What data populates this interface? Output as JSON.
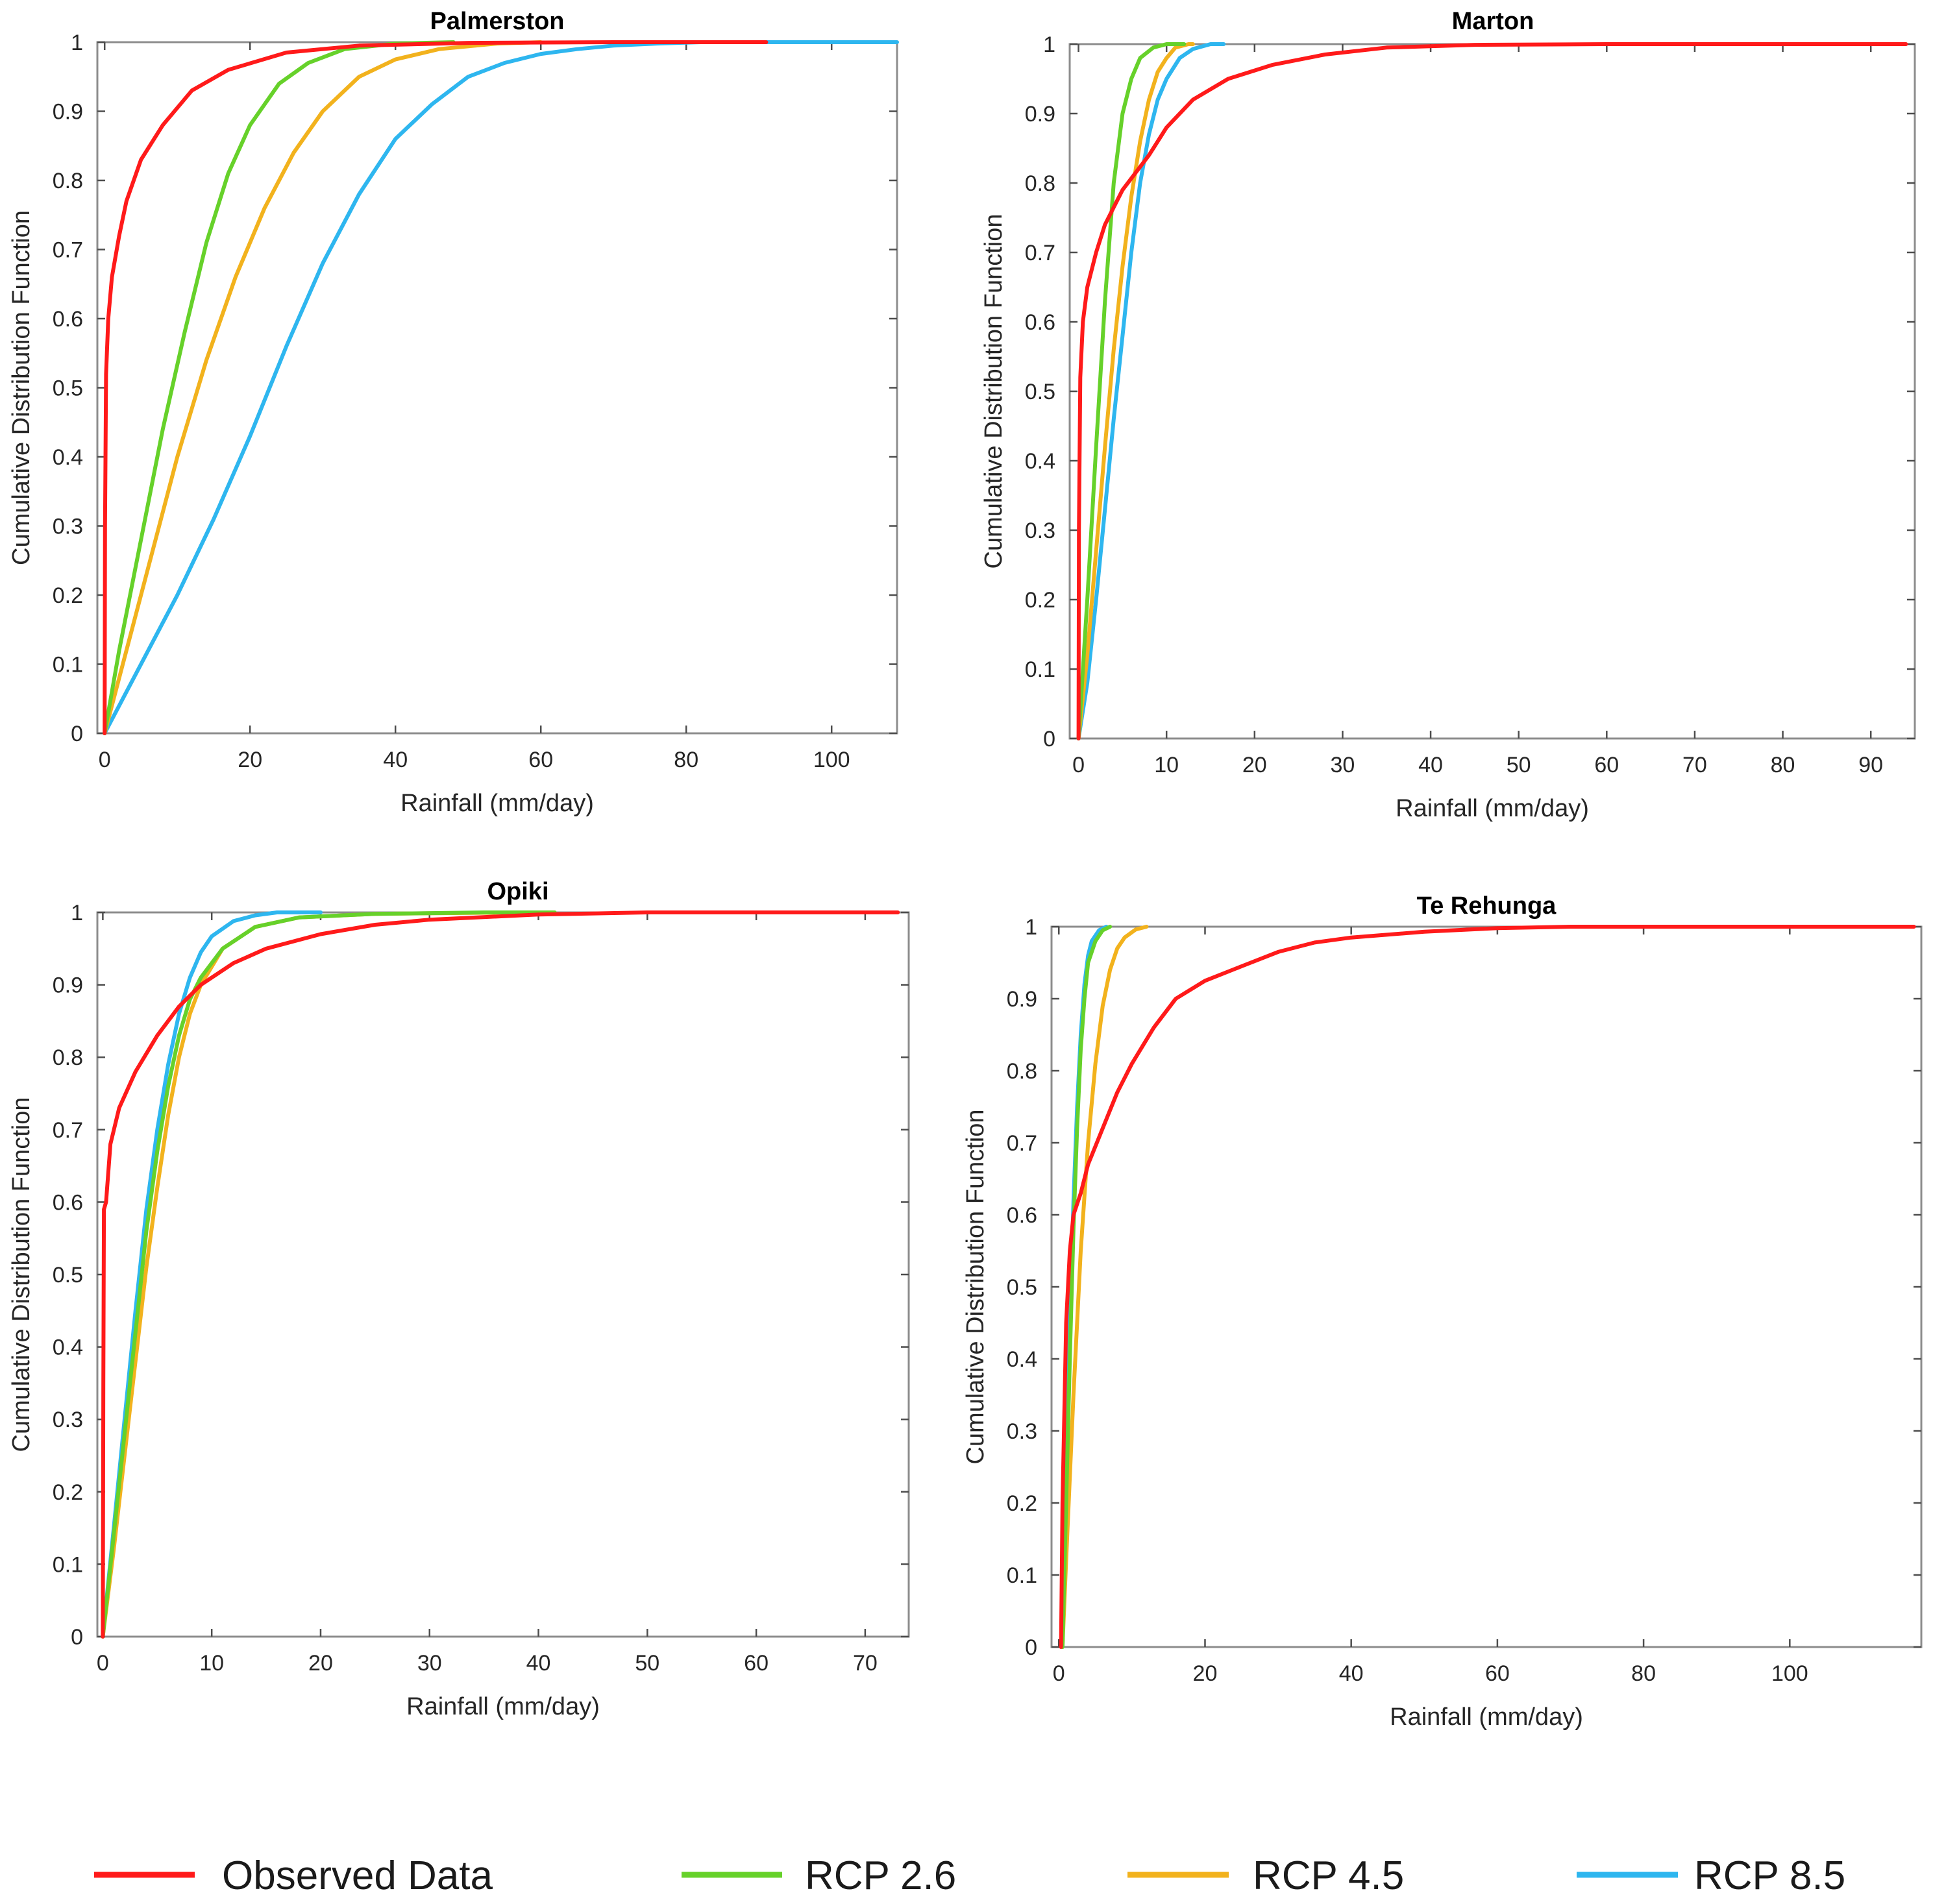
{
  "figure": {
    "legend": [
      {
        "label": "Observed Data",
        "color": "#ff1a1a"
      },
      {
        "label": "RCP 2.6",
        "color": "#66d12a"
      },
      {
        "label": "RCP 4.5",
        "color": "#f2b21d"
      },
      {
        "label": "RCP 8.5",
        "color": "#2eb6ef"
      }
    ]
  },
  "chart_data": [
    {
      "type": "line",
      "title": "Palmerston",
      "xlabel": "Rainfall (mm/day)",
      "ylabel": "Cumulative Distribution Function",
      "xlim": [
        -1,
        109
      ],
      "ylim": [
        0,
        1
      ],
      "xticks": [
        0,
        20,
        40,
        60,
        80,
        100
      ],
      "yticks": [
        0,
        0.1,
        0.2,
        0.3,
        0.4,
        0.5,
        0.6,
        0.7,
        0.8,
        0.9,
        1
      ],
      "series": [
        {
          "name": "Observed Data",
          "color": "#ff1a1a",
          "points": [
            [
              0,
              0
            ],
            [
              0.05,
              0.3
            ],
            [
              0.2,
              0.52
            ],
            [
              0.5,
              0.6
            ],
            [
              1,
              0.66
            ],
            [
              2,
              0.72
            ],
            [
              3,
              0.77
            ],
            [
              5,
              0.83
            ],
            [
              8,
              0.88
            ],
            [
              12,
              0.93
            ],
            [
              17,
              0.96
            ],
            [
              25,
              0.985
            ],
            [
              35,
              0.995
            ],
            [
              50,
              0.999
            ],
            [
              70,
              1
            ],
            [
              91,
              1
            ]
          ]
        },
        {
          "name": "RCP 2.6",
          "color": "#66d12a",
          "points": [
            [
              0,
              0
            ],
            [
              2,
              0.12
            ],
            [
              5,
              0.28
            ],
            [
              8,
              0.44
            ],
            [
              11,
              0.58
            ],
            [
              14,
              0.71
            ],
            [
              17,
              0.81
            ],
            [
              20,
              0.88
            ],
            [
              24,
              0.94
            ],
            [
              28,
              0.97
            ],
            [
              33,
              0.99
            ],
            [
              40,
              0.998
            ],
            [
              48,
              1
            ]
          ]
        },
        {
          "name": "RCP 4.5",
          "color": "#f2b21d",
          "points": [
            [
              0,
              0
            ],
            [
              3,
              0.12
            ],
            [
              6,
              0.24
            ],
            [
              10,
              0.4
            ],
            [
              14,
              0.54
            ],
            [
              18,
              0.66
            ],
            [
              22,
              0.76
            ],
            [
              26,
              0.84
            ],
            [
              30,
              0.9
            ],
            [
              35,
              0.95
            ],
            [
              40,
              0.975
            ],
            [
              46,
              0.99
            ],
            [
              54,
              0.998
            ],
            [
              60,
              1
            ]
          ]
        },
        {
          "name": "RCP 8.5",
          "color": "#2eb6ef",
          "points": [
            [
              0,
              0
            ],
            [
              5,
              0.1
            ],
            [
              10,
              0.2
            ],
            [
              15,
              0.31
            ],
            [
              20,
              0.43
            ],
            [
              25,
              0.56
            ],
            [
              30,
              0.68
            ],
            [
              35,
              0.78
            ],
            [
              40,
              0.86
            ],
            [
              45,
              0.91
            ],
            [
              50,
              0.95
            ],
            [
              55,
              0.97
            ],
            [
              60,
              0.983
            ],
            [
              65,
              0.99
            ],
            [
              70,
              0.995
            ],
            [
              76,
              0.998
            ],
            [
              82,
              1
            ],
            [
              109,
              1
            ]
          ]
        }
      ]
    },
    {
      "type": "line",
      "title": "Marton",
      "xlabel": "Rainfall (mm/day)",
      "ylabel": "Cumulative Distribution Function",
      "xlim": [
        -1,
        95
      ],
      "ylim": [
        0,
        1
      ],
      "xticks": [
        0,
        10,
        20,
        30,
        40,
        50,
        60,
        70,
        80,
        90
      ],
      "yticks": [
        0,
        0.1,
        0.2,
        0.3,
        0.4,
        0.5,
        0.6,
        0.7,
        0.8,
        0.9,
        1
      ],
      "series": [
        {
          "name": "Observed Data",
          "color": "#ff1a1a",
          "points": [
            [
              0,
              0
            ],
            [
              0.05,
              0.3
            ],
            [
              0.2,
              0.52
            ],
            [
              0.5,
              0.6
            ],
            [
              1,
              0.65
            ],
            [
              2,
              0.7
            ],
            [
              3,
              0.74
            ],
            [
              5,
              0.79
            ],
            [
              8,
              0.84
            ],
            [
              10,
              0.88
            ],
            [
              13,
              0.92
            ],
            [
              17,
              0.95
            ],
            [
              22,
              0.97
            ],
            [
              28,
              0.985
            ],
            [
              35,
              0.995
            ],
            [
              45,
              0.999
            ],
            [
              60,
              1
            ],
            [
              94,
              1
            ]
          ]
        },
        {
          "name": "RCP 2.6",
          "color": "#66d12a",
          "points": [
            [
              0,
              0
            ],
            [
              1,
              0.2
            ],
            [
              2,
              0.42
            ],
            [
              3,
              0.63
            ],
            [
              4,
              0.8
            ],
            [
              5,
              0.9
            ],
            [
              6,
              0.95
            ],
            [
              7,
              0.98
            ],
            [
              8.5,
              0.995
            ],
            [
              10,
              1
            ],
            [
              12,
              1
            ]
          ]
        },
        {
          "name": "RCP 4.5",
          "color": "#f2b21d",
          "points": [
            [
              0,
              0
            ],
            [
              1,
              0.12
            ],
            [
              2,
              0.27
            ],
            [
              3,
              0.42
            ],
            [
              4,
              0.56
            ],
            [
              5,
              0.68
            ],
            [
              6,
              0.78
            ],
            [
              7,
              0.86
            ],
            [
              8,
              0.92
            ],
            [
              9,
              0.96
            ],
            [
              10,
              0.98
            ],
            [
              11,
              0.995
            ],
            [
              12.5,
              1
            ],
            [
              13,
              1
            ]
          ]
        },
        {
          "name": "RCP 8.5",
          "color": "#2eb6ef",
          "points": [
            [
              0,
              0
            ],
            [
              1,
              0.08
            ],
            [
              2,
              0.2
            ],
            [
              3,
              0.33
            ],
            [
              4,
              0.46
            ],
            [
              5,
              0.58
            ],
            [
              6,
              0.7
            ],
            [
              7,
              0.8
            ],
            [
              8,
              0.87
            ],
            [
              9,
              0.92
            ],
            [
              10,
              0.95
            ],
            [
              11.5,
              0.98
            ],
            [
              13,
              0.993
            ],
            [
              15,
              1
            ],
            [
              16.5,
              1
            ]
          ]
        }
      ]
    },
    {
      "type": "line",
      "title": "Opiki",
      "xlabel": "Rainfall (mm/day)",
      "ylabel": "Cumulative Distribution Function",
      "xlim": [
        -0.5,
        74
      ],
      "ylim": [
        0,
        1
      ],
      "xticks": [
        0,
        10,
        20,
        30,
        40,
        50,
        60,
        70
      ],
      "yticks": [
        0,
        0.1,
        0.2,
        0.3,
        0.4,
        0.5,
        0.6,
        0.7,
        0.8,
        0.9,
        1
      ],
      "series": [
        {
          "name": "Observed Data",
          "color": "#ff1a1a",
          "points": [
            [
              0,
              0
            ],
            [
              0.05,
              0.35
            ],
            [
              0.1,
              0.59
            ],
            [
              0.3,
              0.6
            ],
            [
              0.7,
              0.68
            ],
            [
              1.5,
              0.73
            ],
            [
              3,
              0.78
            ],
            [
              5,
              0.83
            ],
            [
              7,
              0.87
            ],
            [
              9,
              0.9
            ],
            [
              12,
              0.93
            ],
            [
              15,
              0.95
            ],
            [
              20,
              0.97
            ],
            [
              25,
              0.983
            ],
            [
              30,
              0.99
            ],
            [
              40,
              0.997
            ],
            [
              50,
              1
            ],
            [
              73,
              1
            ]
          ]
        },
        {
          "name": "RCP 2.6",
          "color": "#66d12a",
          "points": [
            [
              0,
              0
            ],
            [
              1,
              0.14
            ],
            [
              2,
              0.28
            ],
            [
              3,
              0.42
            ],
            [
              4,
              0.56
            ],
            [
              5,
              0.67
            ],
            [
              6,
              0.76
            ],
            [
              7,
              0.83
            ],
            [
              8,
              0.88
            ],
            [
              9,
              0.91
            ],
            [
              11,
              0.95
            ],
            [
              14,
              0.98
            ],
            [
              18,
              0.993
            ],
            [
              25,
              0.998
            ],
            [
              35,
              1
            ],
            [
              41.5,
              1
            ]
          ]
        },
        {
          "name": "RCP 4.5",
          "color": "#f2b21d",
          "points": [
            [
              0,
              0
            ],
            [
              1,
              0.12
            ],
            [
              2,
              0.25
            ],
            [
              3,
              0.38
            ],
            [
              4,
              0.51
            ],
            [
              5,
              0.62
            ],
            [
              6,
              0.72
            ],
            [
              7,
              0.8
            ],
            [
              8,
              0.86
            ],
            [
              9,
              0.9
            ],
            [
              11,
              0.95
            ],
            [
              14,
              0.98
            ],
            [
              18,
              0.993
            ],
            [
              25,
              0.998
            ],
            [
              38,
              1
            ]
          ]
        },
        {
          "name": "RCP 8.5",
          "color": "#2eb6ef",
          "points": [
            [
              0,
              0
            ],
            [
              1,
              0.15
            ],
            [
              2,
              0.3
            ],
            [
              3,
              0.45
            ],
            [
              4,
              0.59
            ],
            [
              5,
              0.7
            ],
            [
              6,
              0.79
            ],
            [
              7,
              0.86
            ],
            [
              8,
              0.91
            ],
            [
              9,
              0.945
            ],
            [
              10,
              0.967
            ],
            [
              12,
              0.988
            ],
            [
              14,
              0.996
            ],
            [
              16,
              1
            ],
            [
              20,
              1
            ]
          ]
        }
      ]
    },
    {
      "type": "line",
      "title": "Te Rehunga",
      "xlabel": "Rainfall (mm/day)",
      "ylabel": "Cumulative Distribution Function",
      "xlim": [
        -1,
        118
      ],
      "ylim": [
        0,
        1
      ],
      "xticks": [
        0,
        20,
        40,
        60,
        80,
        100
      ],
      "yticks": [
        0,
        0.1,
        0.2,
        0.3,
        0.4,
        0.5,
        0.6,
        0.7,
        0.8,
        0.9,
        1
      ],
      "series": [
        {
          "name": "Observed Data",
          "color": "#ff1a1a",
          "points": [
            [
              0.3,
              0
            ],
            [
              0.5,
              0.2
            ],
            [
              1,
              0.45
            ],
            [
              1.5,
              0.55
            ],
            [
              2,
              0.6
            ],
            [
              3,
              0.63
            ],
            [
              4,
              0.67
            ],
            [
              6,
              0.72
            ],
            [
              8,
              0.77
            ],
            [
              10,
              0.81
            ],
            [
              13,
              0.86
            ],
            [
              16,
              0.9
            ],
            [
              20,
              0.925
            ],
            [
              25,
              0.945
            ],
            [
              30,
              0.965
            ],
            [
              35,
              0.978
            ],
            [
              40,
              0.985
            ],
            [
              50,
              0.993
            ],
            [
              60,
              0.998
            ],
            [
              70,
              1
            ],
            [
              117,
              1
            ]
          ]
        },
        {
          "name": "RCP 2.6",
          "color": "#66d12a",
          "points": [
            [
              0.5,
              0
            ],
            [
              1,
              0.2
            ],
            [
              1.5,
              0.4
            ],
            [
              2,
              0.58
            ],
            [
              2.5,
              0.72
            ],
            [
              3,
              0.83
            ],
            [
              3.5,
              0.9
            ],
            [
              4,
              0.95
            ],
            [
              5,
              0.98
            ],
            [
              6,
              0.995
            ],
            [
              7,
              1
            ]
          ]
        },
        {
          "name": "RCP 4.5",
          "color": "#f2b21d",
          "points": [
            [
              0.5,
              0
            ],
            [
              1,
              0.12
            ],
            [
              2,
              0.35
            ],
            [
              3,
              0.55
            ],
            [
              4,
              0.7
            ],
            [
              5,
              0.81
            ],
            [
              6,
              0.89
            ],
            [
              7,
              0.94
            ],
            [
              8,
              0.97
            ],
            [
              9,
              0.985
            ],
            [
              10.5,
              0.996
            ],
            [
              12,
              1
            ]
          ]
        },
        {
          "name": "RCP 8.5",
          "color": "#2eb6ef",
          "points": [
            [
              0.5,
              0
            ],
            [
              1,
              0.25
            ],
            [
              1.5,
              0.45
            ],
            [
              2,
              0.62
            ],
            [
              2.5,
              0.75
            ],
            [
              3,
              0.85
            ],
            [
              3.5,
              0.92
            ],
            [
              4,
              0.96
            ],
            [
              4.5,
              0.98
            ],
            [
              5.5,
              0.995
            ],
            [
              6.5,
              1
            ]
          ]
        }
      ]
    }
  ]
}
